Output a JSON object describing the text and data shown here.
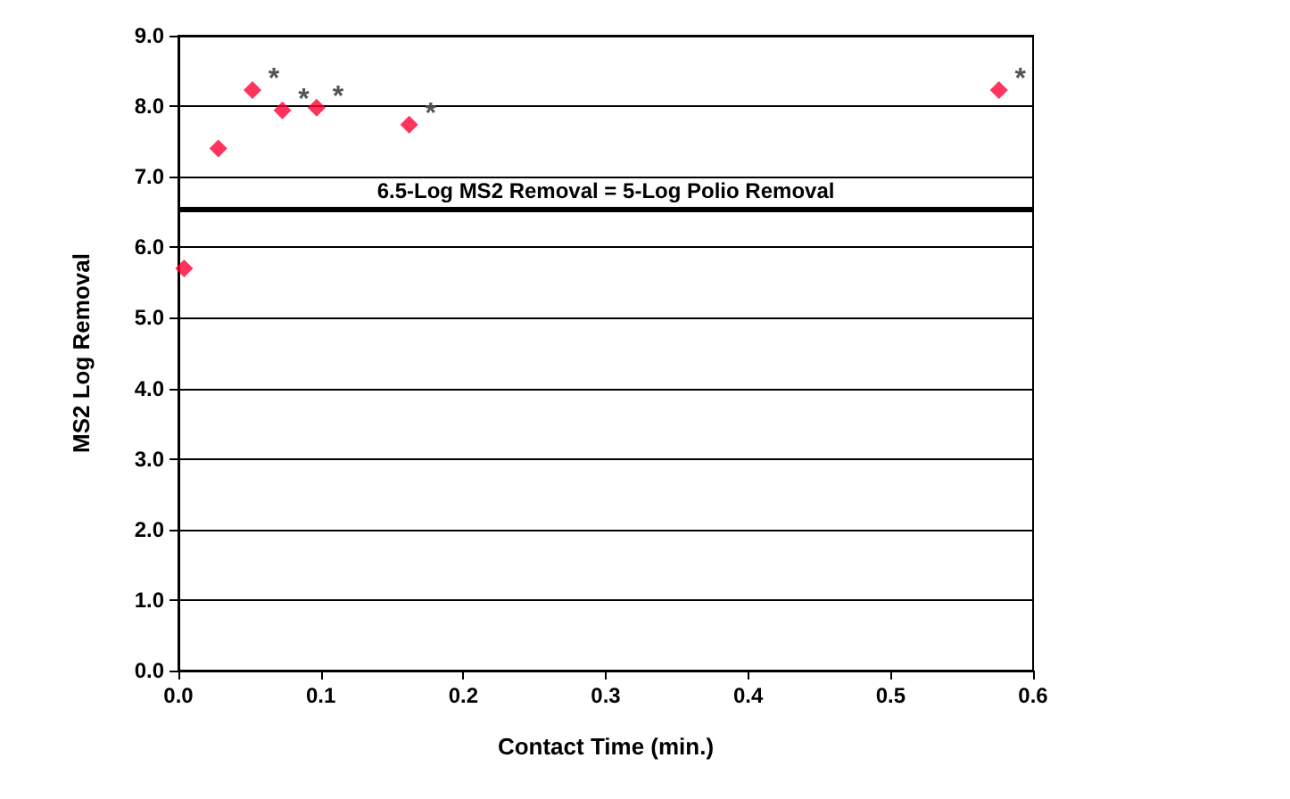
{
  "chart_data": {
    "type": "scatter",
    "xlabel": "Contact Time (min.)",
    "ylabel": "MS2 Log Removal",
    "x": [
      0.004,
      0.028,
      0.052,
      0.073,
      0.097,
      0.162,
      0.576
    ],
    "series": [
      {
        "color": "#ff0033",
        "values": [
          5.7,
          7.4,
          8.23,
          7.94,
          7.98,
          7.74,
          8.23
        ]
      }
    ],
    "marker": "diamond",
    "xlim": [
      0,
      0.6
    ],
    "xticks": [
      {
        "value": 0,
        "label": "0.0"
      },
      0.1,
      0.2,
      0.3,
      0.4,
      0.5,
      0.6
    ],
    "ylim": [
      0,
      9
    ],
    "yticks": [
      {
        "value": 0,
        "label": "0.0"
      },
      {
        "value": 1,
        "label": "1.0"
      },
      {
        "value": 2,
        "label": "2.0"
      },
      {
        "value": 3,
        "label": "3.0"
      },
      {
        "value": 4,
        "label": "4.0"
      },
      {
        "value": 5,
        "label": "5.0"
      },
      {
        "value": 6,
        "label": "6.0"
      },
      {
        "value": 7,
        "label": "7.0"
      },
      {
        "value": 8,
        "label": "8.0"
      },
      {
        "value": 9,
        "label": "9.0"
      }
    ],
    "grid": "y",
    "ref_lines": [
      {
        "axis": "y",
        "value": 6.55,
        "label": "6.5-Log MS2 Removal = 5-Log Polio Removal",
        "color": "#000000"
      }
    ],
    "annotations": [
      {
        "text": "*",
        "x": 0.052,
        "y": 8.23
      },
      {
        "text": "*",
        "x": 0.073,
        "y": 7.94
      },
      {
        "text": "*",
        "x": 0.097,
        "y": 7.98
      },
      {
        "text": "*",
        "x": 0.162,
        "y": 7.74
      },
      {
        "text": "*",
        "x": 0.576,
        "y": 8.23
      }
    ]
  }
}
